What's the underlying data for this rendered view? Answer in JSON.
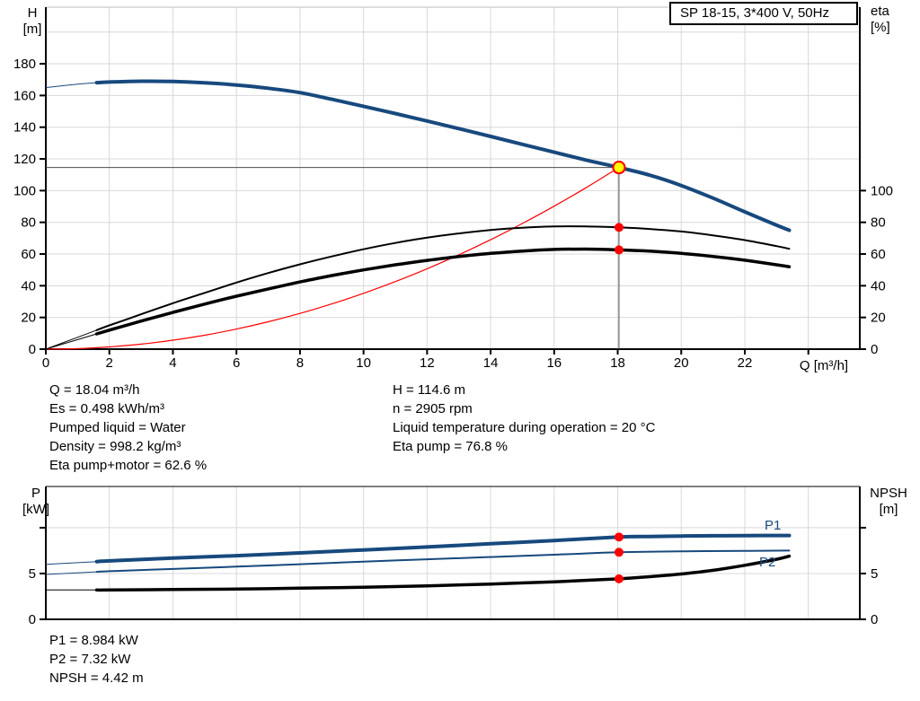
{
  "title_box": {
    "label": "SP 18-15, 3*400 V, 50Hz"
  },
  "colors": {
    "curve_blue": "#17497d",
    "curve_black": "#000000",
    "curve_red": "#ff0000",
    "duty_point_fill": "#ffff00",
    "duty_point_ring": "#ff0000",
    "grid": "#d8d8d8",
    "crosshair": "#4d4d4d"
  },
  "axis_titles": {
    "main_left_1": "H",
    "main_left_2": "[m]",
    "main_right_1": "eta",
    "main_right_2": "[%]",
    "main_x": "Q [m³/h]",
    "power_left_1": "P",
    "power_left_2": "[kW]",
    "power_right_1": "NPSH",
    "power_right_2": "[m]"
  },
  "curve_labels": {
    "p1": "P1",
    "p2": "P2"
  },
  "annotations": {
    "left": [
      "Q = 18.04 m³/h",
      "Es = 0.498 kWh/m³",
      "Pumped liquid = Water",
      "Density = 998.2 kg/m³",
      "Eta pump+motor = 62.6 %"
    ],
    "right": [
      "H = 114.6 m",
      "n = 2905 rpm",
      "Liquid temperature during operation = 20 °C",
      "Eta pump = 76.8 %"
    ],
    "bottom": [
      "P1 = 8.984 kW",
      "P2 = 7.32 kW",
      "NPSH = 4.42 m"
    ]
  },
  "chart_data": [
    {
      "type": "line",
      "title": "SP 18-15, 3*400 V, 50Hz",
      "x": {
        "label": "Q [m³/h]",
        "min": 0,
        "max": 25.62,
        "tick_step": 2,
        "ticks_until": 24,
        "labels_until": 22
      },
      "y_left": {
        "label": "H [m]",
        "min": 0,
        "max": 215.7,
        "tick_step": 20,
        "labels_until": 180,
        "grid_until": 200
      },
      "y_right": {
        "label": "eta [%]",
        "min": 0,
        "max": 100,
        "tick_step": 20,
        "same_scale_as_left": true
      },
      "grid": true,
      "legend": "none",
      "series": [
        {
          "name": "system-curve",
          "axis": "left",
          "color": "#ff0000",
          "width": 1.2,
          "points": [
            [
              0,
              0
            ],
            [
              1,
              0.35
            ],
            [
              2,
              1.41
            ],
            [
              3,
              3.17
            ],
            [
              4,
              5.64
            ],
            [
              5,
              8.8
            ],
            [
              6,
              12.68
            ],
            [
              7,
              17.26
            ],
            [
              8,
              22.54
            ],
            [
              9,
              28.53
            ],
            [
              10,
              35.22
            ],
            [
              11,
              42.62
            ],
            [
              12,
              50.72
            ],
            [
              13,
              59.52
            ],
            [
              14,
              69.03
            ],
            [
              15,
              79.25
            ],
            [
              16,
              90.17
            ],
            [
              17,
              101.8
            ],
            [
              18.04,
              114.6
            ]
          ]
        },
        {
          "name": "eta-pump",
          "axis": "right",
          "color": "#000000",
          "width": 2,
          "thin_until": 1.6,
          "thin_width": 1,
          "points": [
            [
              0,
              0
            ],
            [
              1,
              7.5
            ],
            [
              1.6,
              12
            ],
            [
              2,
              15
            ],
            [
              3,
              22
            ],
            [
              4,
              29
            ],
            [
              5,
              35.5
            ],
            [
              6,
              42
            ],
            [
              7,
              48
            ],
            [
              8,
              53.5
            ],
            [
              9,
              58.5
            ],
            [
              10,
              63
            ],
            [
              11,
              67
            ],
            [
              12,
              70.3
            ],
            [
              13,
              73
            ],
            [
              14,
              75.2
            ],
            [
              15,
              76.6
            ],
            [
              16,
              77.4
            ],
            [
              17,
              77.4
            ],
            [
              18.04,
              76.8
            ],
            [
              19,
              75.8
            ],
            [
              20,
              74.2
            ],
            [
              21,
              71.8
            ],
            [
              22,
              68.8
            ],
            [
              23,
              65
            ],
            [
              23.4,
              63.3
            ]
          ]
        },
        {
          "name": "eta-pump-motor",
          "axis": "right",
          "color": "#000000",
          "width": 3.5,
          "thin_until": 1.6,
          "thin_width": 1,
          "points": [
            [
              0,
              0
            ],
            [
              1,
              6
            ],
            [
              1.6,
              9.6
            ],
            [
              2,
              12
            ],
            [
              3,
              17.7
            ],
            [
              4,
              23.2
            ],
            [
              5,
              28.4
            ],
            [
              6,
              33.4
            ],
            [
              7,
              38
            ],
            [
              8,
              42.4
            ],
            [
              9,
              46.4
            ],
            [
              10,
              50
            ],
            [
              11,
              53.2
            ],
            [
              12,
              56
            ],
            [
              13,
              58.4
            ],
            [
              14,
              60.4
            ],
            [
              15,
              61.9
            ],
            [
              16,
              62.9
            ],
            [
              17,
              63.1
            ],
            [
              18.04,
              62.6
            ],
            [
              19,
              61.8
            ],
            [
              20,
              60.4
            ],
            [
              21,
              58.5
            ],
            [
              22,
              56.1
            ],
            [
              23,
              53.2
            ],
            [
              23.4,
              52
            ]
          ]
        },
        {
          "name": "head",
          "axis": "left",
          "color": "#17497d",
          "width": 4,
          "thin_until": 1.6,
          "thin_width": 1,
          "points": [
            [
              0,
              165
            ],
            [
              1,
              167.2
            ],
            [
              1.6,
              168.1
            ],
            [
              2,
              168.5
            ],
            [
              3,
              169
            ],
            [
              4,
              168.8
            ],
            [
              5,
              168
            ],
            [
              6,
              166.6
            ],
            [
              7,
              164.6
            ],
            [
              8,
              161.8
            ],
            [
              9,
              157.6
            ],
            [
              10,
              153.2
            ],
            [
              11,
              148.6
            ],
            [
              12,
              143.9
            ],
            [
              13,
              139.1
            ],
            [
              14,
              134.2
            ],
            [
              15,
              129.2
            ],
            [
              16,
              124.2
            ],
            [
              17,
              119.3
            ],
            [
              18.04,
              114.6
            ],
            [
              19,
              109.8
            ],
            [
              20,
              103.2
            ],
            [
              21,
              95.3
            ],
            [
              22,
              86.6
            ],
            [
              23,
              78.2
            ],
            [
              23.4,
              75
            ]
          ]
        }
      ],
      "duty_point": {
        "q": 18.04,
        "h": 114.6
      },
      "markers": [
        {
          "name": "eta-pump-point",
          "q": 18.04,
          "value": 76.8,
          "axis": "right"
        },
        {
          "name": "eta-pump-motor-point",
          "q": 18.04,
          "value": 62.6,
          "axis": "right"
        }
      ]
    },
    {
      "type": "line",
      "x": {
        "min": 0,
        "max": 25.62,
        "tick_step": 2,
        "ticks_until": 24
      },
      "y_left": {
        "label": "P [kW]",
        "min": 0,
        "max": 14.5,
        "tick_step": 5,
        "ticks_until": 10,
        "labels_until": 5
      },
      "y_right": {
        "label": "NPSH [m]",
        "min": 0,
        "max": 14.5,
        "tick_step": 5,
        "ticks_until": 10,
        "labels_until": 5
      },
      "grid": true,
      "series": [
        {
          "name": "p2",
          "axis": "left",
          "color": "#17497d",
          "width": 2,
          "thin_until": 1.6,
          "thin_width": 1,
          "points": [
            [
              0,
              4.9
            ],
            [
              1.6,
              5.18
            ],
            [
              2,
              5.25
            ],
            [
              4,
              5.5
            ],
            [
              6,
              5.75
            ],
            [
              8,
              6.02
            ],
            [
              10,
              6.3
            ],
            [
              12,
              6.55
            ],
            [
              14,
              6.8
            ],
            [
              16,
              7.05
            ],
            [
              18.04,
              7.32
            ],
            [
              20,
              7.42
            ],
            [
              22,
              7.47
            ],
            [
              23.4,
              7.5
            ]
          ]
        },
        {
          "name": "p1",
          "axis": "left",
          "color": "#17497d",
          "width": 4,
          "thin_until": 1.6,
          "thin_width": 1,
          "points": [
            [
              0,
              6.0
            ],
            [
              1.6,
              6.3
            ],
            [
              2,
              6.38
            ],
            [
              4,
              6.68
            ],
            [
              6,
              6.95
            ],
            [
              8,
              7.25
            ],
            [
              10,
              7.57
            ],
            [
              12,
              7.9
            ],
            [
              14,
              8.25
            ],
            [
              16,
              8.6
            ],
            [
              18.04,
              8.98
            ],
            [
              19,
              9.04
            ],
            [
              20,
              9.09
            ],
            [
              21,
              9.12
            ],
            [
              22,
              9.14
            ],
            [
              23.4,
              9.15
            ]
          ]
        },
        {
          "name": "npsh",
          "axis": "right",
          "color": "#000000",
          "width": 3.5,
          "thin_until": 1.6,
          "thin_width": 1,
          "points": [
            [
              0,
              3.2
            ],
            [
              1.6,
              3.2
            ],
            [
              2,
              3.2
            ],
            [
              4,
              3.25
            ],
            [
              6,
              3.3
            ],
            [
              8,
              3.4
            ],
            [
              10,
              3.5
            ],
            [
              12,
              3.65
            ],
            [
              14,
              3.85
            ],
            [
              16,
              4.1
            ],
            [
              18.04,
              4.42
            ],
            [
              19,
              4.65
            ],
            [
              20,
              4.95
            ],
            [
              21,
              5.35
            ],
            [
              22,
              5.9
            ],
            [
              23,
              6.55
            ],
            [
              23.4,
              6.9
            ]
          ]
        }
      ],
      "markers": [
        {
          "name": "p1-point",
          "q": 18.04,
          "value": 8.98,
          "axis": "left"
        },
        {
          "name": "p2-point",
          "q": 18.04,
          "value": 7.32,
          "axis": "left"
        },
        {
          "name": "npsh-point",
          "q": 18.04,
          "value": 4.42,
          "axis": "right"
        }
      ]
    }
  ]
}
